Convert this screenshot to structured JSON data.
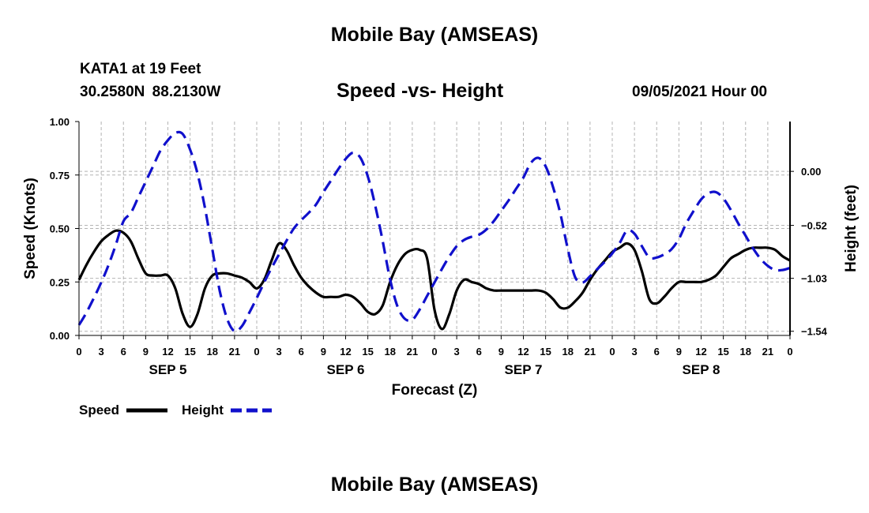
{
  "header": {
    "top_title": "Mobile Bay (AMSEAS)",
    "station_name": "KATA1 at 19 Feet",
    "station_coords": "30.2580N  88.2130W",
    "chart_title": "Speed -vs- Height",
    "forecast_time": "09/05/2021 Hour 00"
  },
  "footer": {
    "bottom_title": "Mobile Bay (AMSEAS)"
  },
  "colors": {
    "speed": "#000000",
    "height": "#1010cc",
    "grid": "#b4b4b4"
  },
  "chart_data": {
    "type": "line",
    "title": "Speed -vs- Height",
    "xlabel": "Forecast (Z)",
    "ylabel": "Speed (Knots)",
    "y2label": "Height (feet)",
    "x_range_hours": [
      0,
      96
    ],
    "x_tick_hours": [
      0,
      3,
      6,
      9,
      12,
      15,
      18,
      21,
      24,
      27,
      30,
      33,
      36,
      39,
      42,
      45,
      48,
      51,
      54,
      57,
      60,
      63,
      66,
      69,
      72,
      75,
      78,
      81,
      84,
      87,
      90,
      93,
      96
    ],
    "x_tick_labels": [
      "0",
      "3",
      "6",
      "9",
      "12",
      "15",
      "18",
      "21",
      "0",
      "3",
      "6",
      "9",
      "12",
      "15",
      "18",
      "21",
      "0",
      "3",
      "6",
      "9",
      "12",
      "15",
      "18",
      "21",
      "0",
      "3",
      "6",
      "9",
      "12",
      "15",
      "18",
      "21",
      "0"
    ],
    "day_labels": [
      {
        "label": "SEP 5",
        "hour": 12
      },
      {
        "label": "SEP 6",
        "hour": 36
      },
      {
        "label": "SEP 7",
        "hour": 60
      },
      {
        "label": "SEP 8",
        "hour": 84
      }
    ],
    "ylim": [
      0,
      1.0
    ],
    "y_ticks": [
      0,
      0.25,
      0.5,
      0.75,
      1.0
    ],
    "y_tick_labels": [
      "0.00",
      "0.25",
      "0.50",
      "0.75",
      "1.00"
    ],
    "y2lim": [
      -1.58,
      0.48
    ],
    "y2_ticks": [
      -1.54,
      -1.03,
      -0.52,
      0.0
    ],
    "y2_tick_labels": [
      "−1.54",
      "−1.03",
      "−0.52",
      "0.00"
    ],
    "grid": true,
    "legend_position": "bottom-left",
    "series": [
      {
        "name": "Speed",
        "axis": "left",
        "style": "solid",
        "x": [
          0,
          1,
          2,
          3,
          4,
          5,
          6,
          7,
          8,
          9,
          10,
          11,
          12,
          13,
          14,
          15,
          16,
          17,
          18,
          19,
          20,
          21,
          22,
          23,
          24,
          25,
          26,
          27,
          28,
          29,
          30,
          31,
          32,
          33,
          34,
          35,
          36,
          37,
          38,
          39,
          40,
          41,
          42,
          43,
          44,
          45,
          46,
          47,
          48,
          49,
          50,
          51,
          52,
          53,
          54,
          55,
          56,
          57,
          58,
          59,
          60,
          61,
          62,
          63,
          64,
          65,
          66,
          67,
          68,
          69,
          70,
          71,
          72,
          73,
          74,
          75,
          76,
          77,
          78,
          79,
          80,
          81,
          82,
          83,
          84,
          85,
          86,
          87,
          88,
          89,
          90,
          91,
          92,
          93,
          94,
          95,
          96
        ],
        "values": [
          0.26,
          0.33,
          0.39,
          0.44,
          0.47,
          0.49,
          0.48,
          0.44,
          0.36,
          0.29,
          0.28,
          0.28,
          0.28,
          0.22,
          0.1,
          0.04,
          0.1,
          0.22,
          0.28,
          0.29,
          0.29,
          0.28,
          0.27,
          0.25,
          0.22,
          0.26,
          0.35,
          0.43,
          0.4,
          0.33,
          0.27,
          0.23,
          0.2,
          0.18,
          0.18,
          0.18,
          0.19,
          0.18,
          0.15,
          0.11,
          0.1,
          0.14,
          0.25,
          0.33,
          0.38,
          0.4,
          0.4,
          0.36,
          0.12,
          0.03,
          0.1,
          0.21,
          0.26,
          0.25,
          0.24,
          0.22,
          0.21,
          0.21,
          0.21,
          0.21,
          0.21,
          0.21,
          0.21,
          0.2,
          0.17,
          0.13,
          0.13,
          0.16,
          0.2,
          0.26,
          0.31,
          0.35,
          0.39,
          0.41,
          0.43,
          0.4,
          0.3,
          0.17,
          0.15,
          0.18,
          0.22,
          0.25,
          0.25,
          0.25,
          0.25,
          0.26,
          0.28,
          0.32,
          0.36,
          0.38,
          0.4,
          0.41,
          0.41,
          0.41,
          0.4,
          0.37,
          0.35
        ]
      },
      {
        "name": "Height",
        "axis": "right",
        "style": "dashed",
        "x": [
          0,
          1,
          2,
          3,
          4,
          5,
          6,
          7,
          8,
          9,
          10,
          11,
          12,
          13,
          14,
          15,
          16,
          17,
          18,
          19,
          20,
          21,
          22,
          23,
          24,
          25,
          26,
          27,
          28,
          29,
          30,
          31,
          32,
          33,
          34,
          35,
          36,
          37,
          38,
          39,
          40,
          41,
          42,
          43,
          44,
          45,
          46,
          47,
          48,
          49,
          50,
          51,
          52,
          53,
          54,
          55,
          56,
          57,
          58,
          59,
          60,
          61,
          62,
          63,
          64,
          65,
          66,
          67,
          68,
          69,
          70,
          71,
          72,
          73,
          74,
          75,
          76,
          77,
          78,
          79,
          80,
          81,
          82,
          83,
          84,
          85,
          86,
          87,
          88,
          89,
          90,
          91,
          92,
          93,
          94,
          95,
          96
        ],
        "values": [
          -1.48,
          -1.36,
          -1.22,
          -1.07,
          -0.9,
          -0.7,
          -0.48,
          -0.4,
          -0.25,
          -0.1,
          0.05,
          0.2,
          0.3,
          0.37,
          0.36,
          0.21,
          -0.02,
          -0.35,
          -0.75,
          -1.15,
          -1.42,
          -1.54,
          -1.49,
          -1.36,
          -1.22,
          -1.07,
          -0.93,
          -0.8,
          -0.67,
          -0.55,
          -0.47,
          -0.4,
          -0.32,
          -0.2,
          -0.09,
          0.02,
          0.12,
          0.18,
          0.13,
          -0.05,
          -0.33,
          -0.67,
          -1.04,
          -1.3,
          -1.42,
          -1.43,
          -1.33,
          -1.2,
          -1.07,
          -0.94,
          -0.82,
          -0.72,
          -0.66,
          -0.63,
          -0.61,
          -0.56,
          -0.48,
          -0.38,
          -0.28,
          -0.17,
          -0.06,
          0.08,
          0.13,
          0.05,
          -0.15,
          -0.41,
          -0.75,
          -1.02,
          -1.07,
          -1.01,
          -0.94,
          -0.87,
          -0.79,
          -0.69,
          -0.57,
          -0.6,
          -0.72,
          -0.83,
          -0.83,
          -0.8,
          -0.75,
          -0.65,
          -0.5,
          -0.38,
          -0.27,
          -0.21,
          -0.2,
          -0.26,
          -0.37,
          -0.5,
          -0.62,
          -0.74,
          -0.84,
          -0.91,
          -0.95,
          -0.95,
          -0.93
        ]
      }
    ]
  }
}
